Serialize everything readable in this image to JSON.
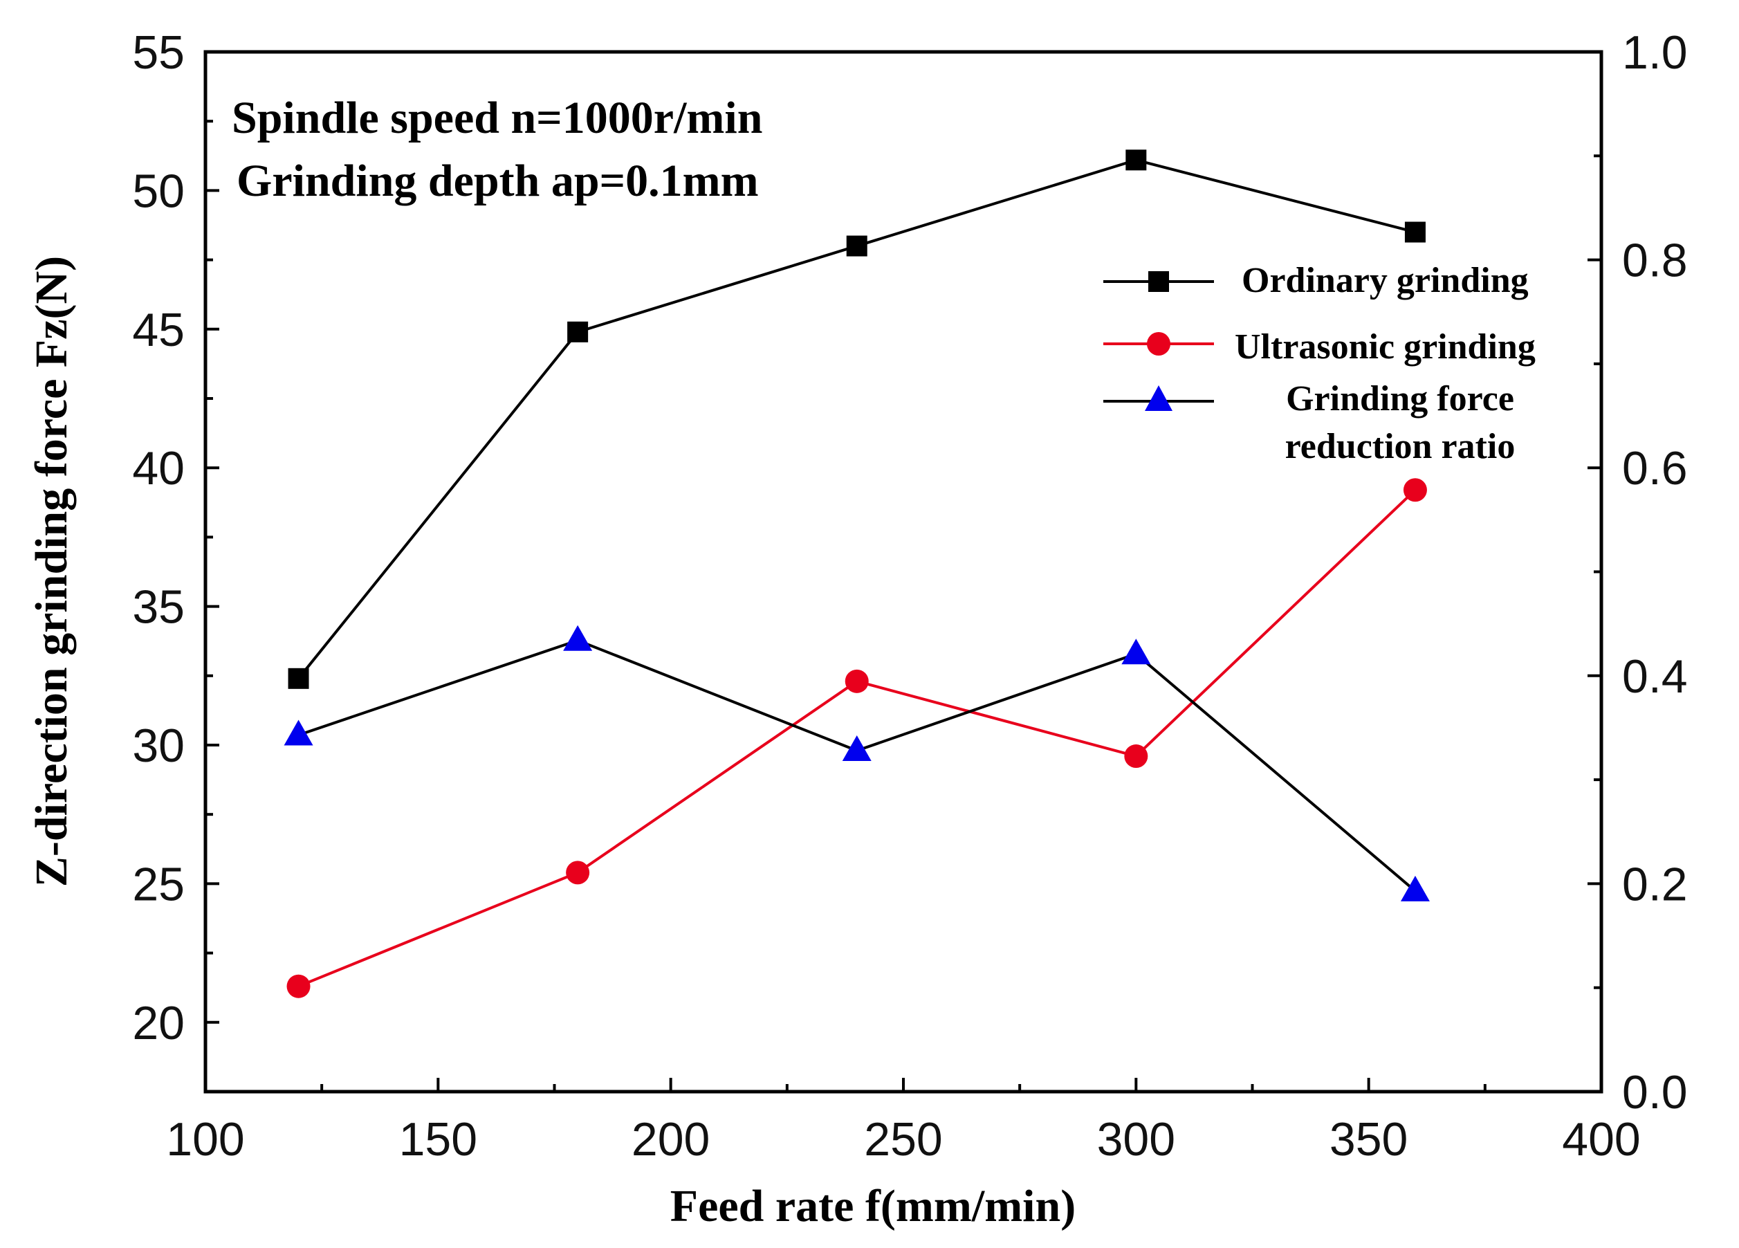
{
  "chart_data": {
    "type": "line",
    "annotations": [
      "Spindle speed n=1000r/min",
      "Grinding depth ap=0.1mm"
    ],
    "xlabel": "Feed rate f(mm/min)",
    "ylabel": "Z-direction grinding force Fz(N)",
    "x": [
      120,
      180,
      240,
      300,
      360
    ],
    "xlim": [
      100,
      400
    ],
    "ylim_left": [
      17.5,
      55
    ],
    "ylim_right": [
      0.0,
      1.0
    ],
    "x_ticks": [
      "100",
      "150",
      "200",
      "250",
      "300",
      "350",
      "400"
    ],
    "y_left_ticks": [
      "20",
      "25",
      "30",
      "35",
      "40",
      "45",
      "50",
      "55"
    ],
    "y_right_ticks": [
      "0.0",
      "0.2",
      "0.4",
      "0.6",
      "0.8",
      "1.0"
    ],
    "legend_position": "top-right inside",
    "series": [
      {
        "name": "Ordinary grinding",
        "axis": "left",
        "color": "#000000",
        "line_color": "#000000",
        "marker": "square",
        "values": [
          32.4,
          44.9,
          48.0,
          51.1,
          48.5
        ]
      },
      {
        "name": "Ultrasonic grinding",
        "axis": "left",
        "color": "#e8001c",
        "line_color": "#e8001c",
        "marker": "circle",
        "values": [
          21.3,
          25.4,
          32.3,
          29.6,
          39.2
        ]
      },
      {
        "name_lines": [
          "Grinding force",
          "reduction ratio"
        ],
        "name": "Grinding force reduction ratio",
        "axis": "right",
        "color": "#0000ee",
        "line_color": "#000000",
        "marker": "triangle",
        "values": [
          0.343,
          0.434,
          0.328,
          0.421,
          0.193
        ]
      }
    ]
  }
}
